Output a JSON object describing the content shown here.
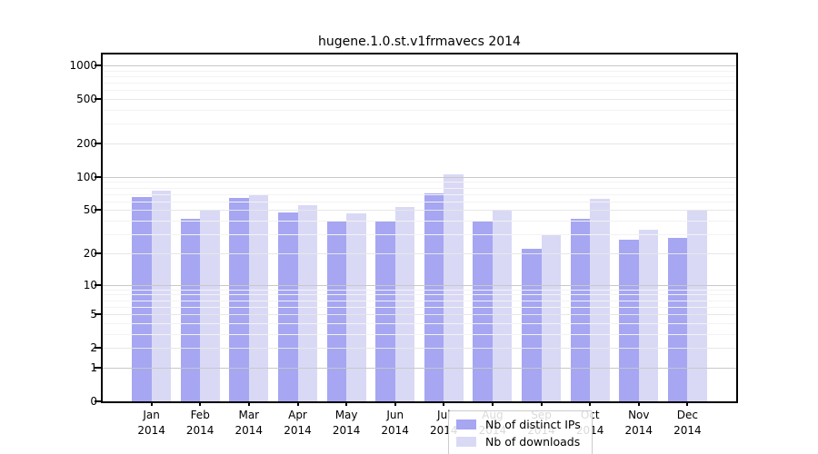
{
  "title": "hugene.1.0.st.v1frmavecs 2014",
  "chart_data": {
    "type": "bar",
    "months": [
      "Jan",
      "Feb",
      "Mar",
      "Apr",
      "May",
      "Jun",
      "Jul",
      "Aug",
      "Sep",
      "Oct",
      "Nov",
      "Dec"
    ],
    "year": "2014",
    "categories": [
      "Jan 2014",
      "Feb 2014",
      "Mar 2014",
      "Apr 2014",
      "May 2014",
      "Jun 2014",
      "Jul 2014",
      "Aug 2014",
      "Sep 2014",
      "Oct 2014",
      "Nov 2014",
      "Dec 2014"
    ],
    "series": [
      {
        "name": "Nb of distinct IPs",
        "color": "#a6a6f2",
        "values": [
          66,
          42,
          64,
          48,
          39,
          40,
          71,
          39,
          22,
          42,
          27,
          28
        ]
      },
      {
        "name": "Nb of downloads",
        "color": "#d9d9f6",
        "values": [
          75,
          50,
          70,
          55,
          47,
          53,
          105,
          50,
          30,
          63,
          33,
          50
        ]
      }
    ],
    "y_axis": {
      "scale": "log1p",
      "ticks": [
        0,
        1,
        2,
        5,
        10,
        20,
        50,
        100,
        200,
        500,
        1000
      ],
      "minor_ticks": [
        3,
        4,
        6,
        7,
        8,
        9,
        30,
        40,
        60,
        70,
        80,
        90,
        300,
        400,
        600,
        700,
        800,
        900
      ],
      "ylim": [
        0,
        1250
      ]
    },
    "x_axis": {
      "label": ""
    },
    "legend_position": "lower center",
    "grid": true,
    "colors": {
      "frame": "#000000",
      "grid_major": "#c8c8c8",
      "grid_mid": "#e7e7e7",
      "grid_minor": "#f3f3f3"
    }
  }
}
